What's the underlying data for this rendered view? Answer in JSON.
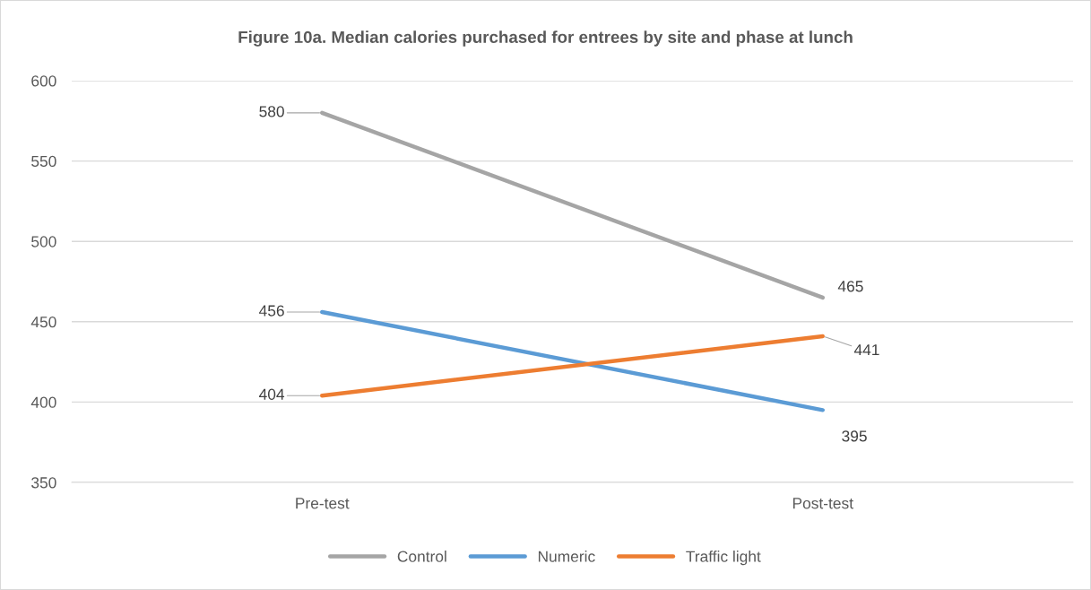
{
  "chart_data": {
    "type": "line",
    "title": "Figure 10a. Median calories purchased for entrees by site and phase at lunch",
    "categories": [
      "Pre-test",
      "Post-test"
    ],
    "series": [
      {
        "name": "Control",
        "color": "#a5a5a5",
        "values": [
          580,
          465
        ]
      },
      {
        "name": "Numeric",
        "color": "#5b9bd5",
        "values": [
          456,
          395
        ]
      },
      {
        "name": "Traffic light",
        "color": "#ed7d31",
        "values": [
          404,
          441
        ]
      }
    ],
    "ylim": [
      350,
      600
    ],
    "yticks": [
      350,
      400,
      450,
      500,
      550,
      600
    ],
    "grid": "y",
    "legend": "bottom",
    "data_labels": true,
    "marker": "none",
    "line_style": "solid"
  }
}
